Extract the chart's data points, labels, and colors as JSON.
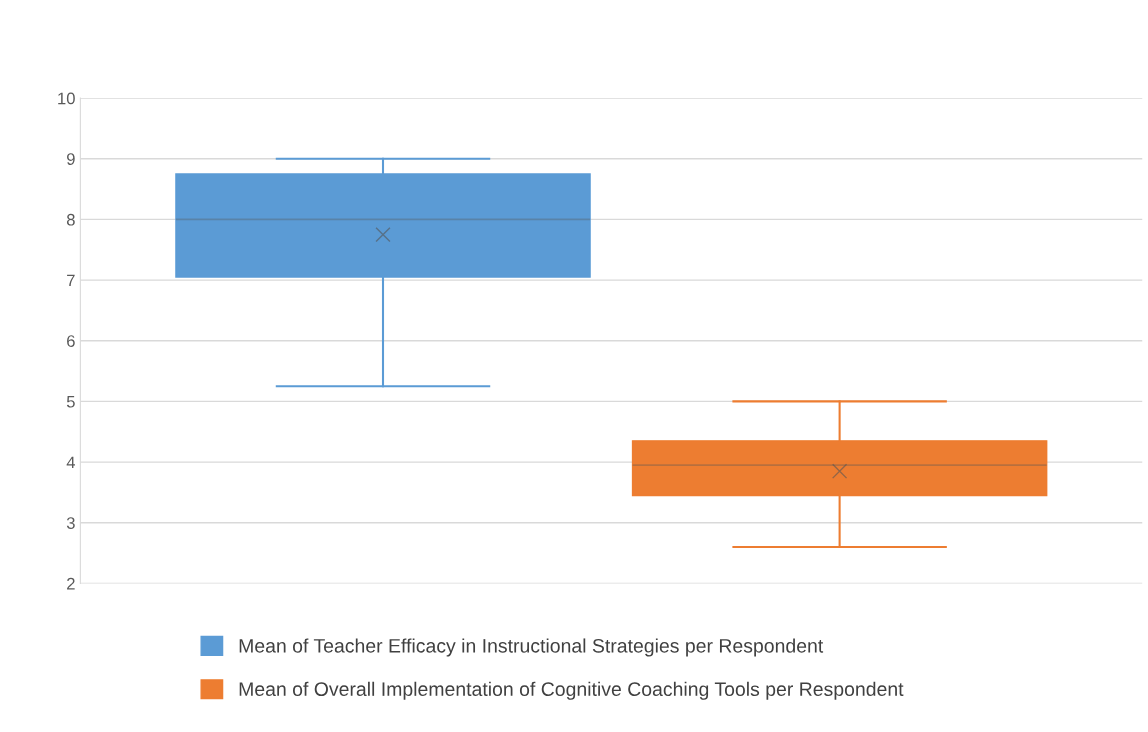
{
  "chart_data": {
    "type": "box",
    "categories": [
      null
    ],
    "ylim": [
      2,
      10
    ],
    "yticks": [
      2,
      3,
      4,
      5,
      6,
      7,
      8,
      9,
      10
    ],
    "grid": "y",
    "legend": "bottom",
    "marker": "cross",
    "series": [
      {
        "name": "Mean of Teacher Efficacy in Instructional Strategies per Respondent",
        "color": "#5b9bd5",
        "boxes": [
          {
            "low": 5.25,
            "q1": 7.05,
            "median": 8.0,
            "q3": 8.75,
            "high": 9.0,
            "mean": 7.75
          }
        ]
      },
      {
        "name": "Mean of Overall Implementation of Cognitive Coaching Tools per Respondent",
        "color": "#ed7d31",
        "boxes": [
          {
            "low": 2.6,
            "q1": 3.45,
            "median": 3.95,
            "q3": 4.35,
            "high": 5.0,
            "mean": 3.85
          }
        ]
      }
    ]
  }
}
